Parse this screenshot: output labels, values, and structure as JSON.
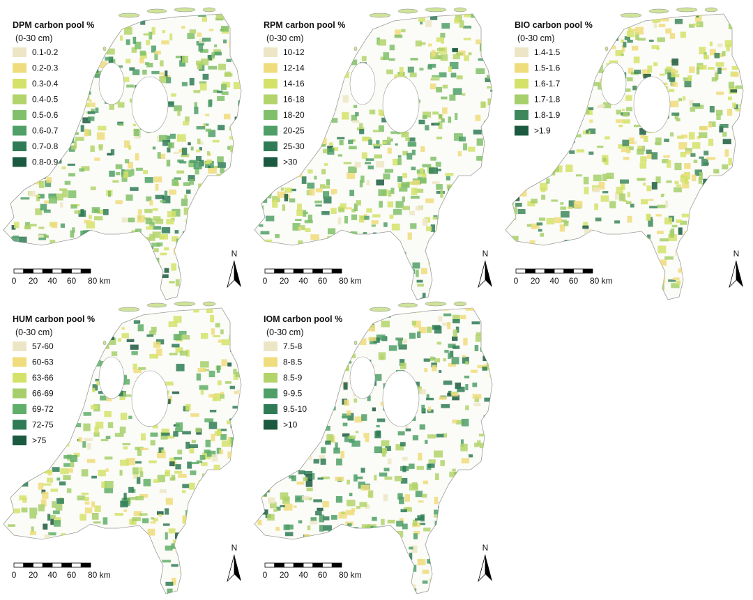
{
  "panels": [
    {
      "title": "DPM carbon pool %",
      "subtitle": "(0-30 cm)",
      "legend": [
        {
          "label": "0.1-0.2",
          "color": "#ede6c6"
        },
        {
          "label": "0.2-0.3",
          "color": "#efdc7c"
        },
        {
          "label": "0.3-0.4",
          "color": "#d4e26a"
        },
        {
          "label": "0.4-0.5",
          "color": "#b3d36b"
        },
        {
          "label": "0.5-0.6",
          "color": "#80c06a"
        },
        {
          "label": "0.6-0.7",
          "color": "#4f9f69"
        },
        {
          "label": "0.7-0.8",
          "color": "#2e7b56"
        },
        {
          "label": "0.8-0.9",
          "color": "#1b5940"
        }
      ],
      "scale_labels": [
        "0",
        "20",
        "40",
        "60",
        "80 km"
      ],
      "north": "N"
    },
    {
      "title": "RPM carbon pool %",
      "subtitle": "(0-30 cm)",
      "legend": [
        {
          "label": "10-12",
          "color": "#ede6c6"
        },
        {
          "label": "12-14",
          "color": "#efdc7c"
        },
        {
          "label": "14-16",
          "color": "#d4e26a"
        },
        {
          "label": "16-18",
          "color": "#b3d36b"
        },
        {
          "label": "18-20",
          "color": "#80c06a"
        },
        {
          "label": "20-25",
          "color": "#4f9f69"
        },
        {
          "label": "25-30",
          "color": "#2e7b56"
        },
        {
          "label": ">30",
          "color": "#1b5940"
        }
      ],
      "scale_labels": [
        "0",
        "20",
        "40",
        "60",
        "80 km"
      ],
      "north": "N"
    },
    {
      "title": "BIO carbon pool %",
      "subtitle": "(0-30 cm)",
      "legend": [
        {
          "label": "1.4-1.5",
          "color": "#ede6c6"
        },
        {
          "label": "1.5-1.6",
          "color": "#efdc7c"
        },
        {
          "label": "1.6-1.7",
          "color": "#d4e26a"
        },
        {
          "label": "1.7-1.8",
          "color": "#a6cf6b"
        },
        {
          "label": "1.8-1.9",
          "color": "#3d875b"
        },
        {
          "label": ">1.9",
          "color": "#1b5940"
        }
      ],
      "scale_labels": [
        "0",
        "20",
        "40",
        "60",
        "80 km"
      ],
      "north": "N"
    },
    {
      "title": "HUM carbon pool %",
      "subtitle": "(0-30 cm)",
      "legend": [
        {
          "label": "57-60",
          "color": "#ede6c6"
        },
        {
          "label": "60-63",
          "color": "#efdc7c"
        },
        {
          "label": "63-66",
          "color": "#d4e26a"
        },
        {
          "label": "66-69",
          "color": "#a6cf6b"
        },
        {
          "label": "69-72",
          "color": "#5fae69"
        },
        {
          "label": "72-75",
          "color": "#2e7b56"
        },
        {
          "label": ">75",
          "color": "#1b5940"
        }
      ],
      "scale_labels": [
        "0",
        "20",
        "40",
        "60",
        "80 km"
      ],
      "north": "N"
    },
    {
      "title": "IOM carbon pool %",
      "subtitle": "(0-30 cm)",
      "legend": [
        {
          "label": "7.5-8",
          "color": "#ede6c6"
        },
        {
          "label": "8-8.5",
          "color": "#efdc7c"
        },
        {
          "label": "8.5-9",
          "color": "#b3d36b"
        },
        {
          "label": "9-9.5",
          "color": "#4f9f69"
        },
        {
          "label": "9.5-10",
          "color": "#2e7b56"
        },
        {
          "label": ">10",
          "color": "#1b5940"
        }
      ],
      "scale_labels": [
        "0",
        "20",
        "40",
        "60",
        "80 km"
      ],
      "north": "N"
    }
  ]
}
